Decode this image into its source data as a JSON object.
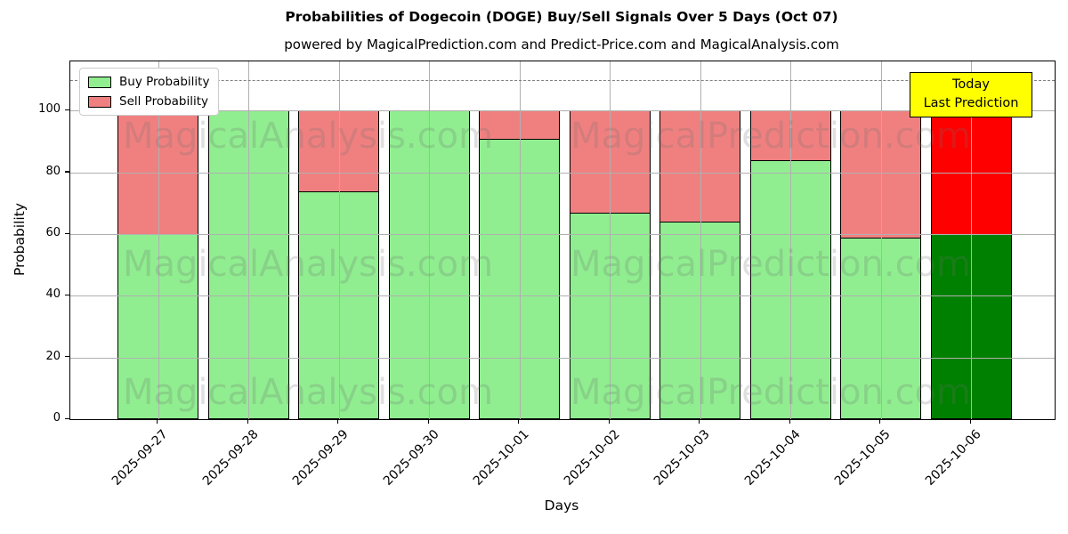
{
  "header": {
    "title": "Probabilities of Dogecoin (DOGE) Buy/Sell Signals Over 5 Days (Oct 07)",
    "subtitle": "powered by MagicalPrediction.com and Predict-Price.com and MagicalAnalysis.com"
  },
  "axes": {
    "x_label": "Days",
    "y_label": "Probability",
    "y_ticks": [
      0,
      20,
      40,
      60,
      80,
      100
    ]
  },
  "legend": {
    "items": [
      {
        "label": "Buy Probability",
        "color": "#90ee90"
      },
      {
        "label": "Sell Probability",
        "color": "#f08080"
      }
    ]
  },
  "annotation": {
    "line1": "Today",
    "line2": "Last Prediction",
    "bg_color": "#ffff00"
  },
  "watermarks": {
    "left": "MagicalAnalysis.com",
    "right": "MagicalPrediction.com"
  },
  "colors": {
    "buy": "#90ee90",
    "sell": "#f08080",
    "today_buy": "#008000",
    "today_sell": "#ff0000",
    "grid": "#b0b0b0",
    "dashed_line": "#7f7f7f",
    "bar_edge": "#000000"
  },
  "chart_data": {
    "type": "bar",
    "stacked": true,
    "title": "Probabilities of Dogecoin (DOGE) Buy/Sell Signals Over 5 Days (Oct 07)",
    "xlabel": "Days",
    "ylabel": "Probability",
    "ylim": [
      0,
      116
    ],
    "grid": true,
    "legend_position": "upper left",
    "dashed_line_y": 110,
    "categories": [
      "2025-09-27",
      "2025-09-28",
      "2025-09-29",
      "2025-09-30",
      "2025-10-01",
      "2025-10-02",
      "2025-10-03",
      "2025-10-04",
      "2025-10-05",
      "2025-10-06"
    ],
    "series": [
      {
        "name": "Buy Probability",
        "color": "#90ee90",
        "values": [
          60,
          100,
          74,
          100,
          91,
          67,
          64,
          84,
          59,
          60
        ]
      },
      {
        "name": "Sell Probability",
        "color": "#f08080",
        "values": [
          40,
          0,
          26,
          0,
          9,
          33,
          36,
          16,
          41,
          40
        ]
      }
    ],
    "highlight": {
      "index": 9,
      "category": "2025-10-06",
      "buy_color": "#008000",
      "sell_color": "#ff0000",
      "label": "Today Last Prediction"
    }
  }
}
